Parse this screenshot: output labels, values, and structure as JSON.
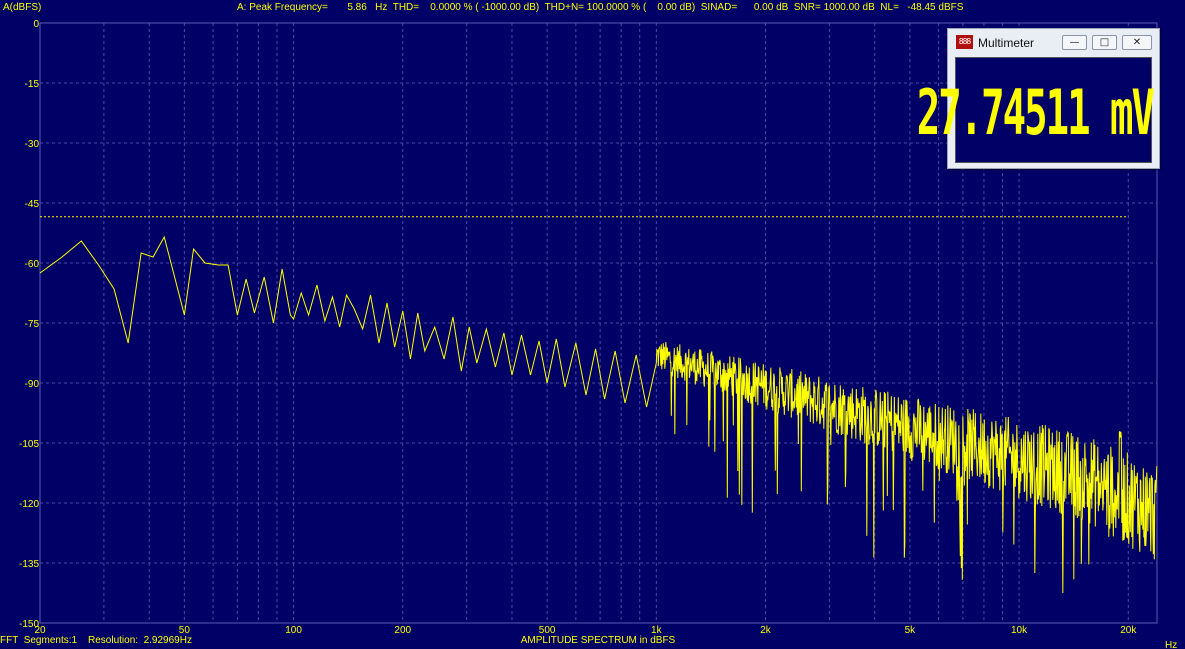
{
  "header": {
    "text": "A: Peak Frequency=       5.86   Hz  THD=    0.0000 % ( -1000.00 dB)  THD+N= 100.0000 % (    0.00 dB)  SINAD=      0.00 dB  SNR= 1000.00 dB  NL=   -48.45 dBFS"
  },
  "footer": {
    "segments": "FFT  Segments:1",
    "resolution": "Resolution:  2.92969Hz"
  },
  "colors": {
    "background": "#000066",
    "trace": "#ffff00",
    "grid": "#4a4aa8"
  },
  "multimeter": {
    "title": "Multimeter",
    "icon": "888",
    "value": "27.74511 mV",
    "buttons": {
      "minimize": "minimize-icon",
      "maximize": "maximize-icon",
      "close": "close-icon"
    }
  },
  "chart_data": {
    "type": "line",
    "title": "AMPLITUDE SPECTRUM in dBFS",
    "xlabel": "Hz",
    "ylabel": "A(dBFS)",
    "xscale": "log",
    "xlim": [
      20,
      24000
    ],
    "ylim": [
      -150,
      0
    ],
    "grid": true,
    "yticks": [
      0,
      -15,
      -30,
      -45,
      -60,
      -75,
      -90,
      -105,
      -120,
      -135,
      -150
    ],
    "xticks": [
      {
        "value": 20,
        "label": "20"
      },
      {
        "value": 50,
        "label": "50"
      },
      {
        "value": 100,
        "label": "100"
      },
      {
        "value": 200,
        "label": "200"
      },
      {
        "value": 500,
        "label": "500"
      },
      {
        "value": 1000,
        "label": "1k"
      },
      {
        "value": 2000,
        "label": "2k"
      },
      {
        "value": 5000,
        "label": "5k"
      },
      {
        "value": 10000,
        "label": "10k"
      },
      {
        "value": 20000,
        "label": "20k"
      }
    ],
    "reference_line": {
      "y": -48.45,
      "x_from": 20,
      "x_to": 20000,
      "style": "dotted"
    },
    "series": [
      {
        "x": [
          20,
          23,
          26,
          29,
          32,
          35,
          38,
          41,
          44,
          47,
          50,
          53,
          57,
          62,
          66,
          70,
          74,
          78,
          83,
          88,
          93,
          98,
          100,
          105,
          110,
          116,
          122,
          128,
          134,
          140,
          147,
          155,
          163,
          172,
          181,
          190,
          200,
          210,
          220,
          230,
          245,
          260,
          275,
          290,
          305,
          320,
          340,
          360,
          380,
          400,
          425,
          450,
          475,
          500,
          530,
          560,
          600,
          640,
          680,
          720,
          770,
          820,
          880,
          940,
          1000
        ],
        "y": [
          -62.5,
          -58.5,
          -54.5,
          -60.5,
          -66.5,
          -80,
          -57.5,
          -58.5,
          -53.5,
          -63.5,
          -73,
          -56.5,
          -60,
          -60.5,
          -60.5,
          -73,
          -64,
          -72.5,
          -63.5,
          -75,
          -61.5,
          -73,
          -74,
          -67.5,
          -73,
          -65.5,
          -74.5,
          -68.5,
          -76,
          -68,
          -71.5,
          -76.5,
          -68,
          -80,
          -70,
          -81,
          -72,
          -84,
          -72.5,
          -82,
          -76,
          -84,
          -73.5,
          -87,
          -76,
          -85,
          -76.5,
          -86,
          -77.5,
          -88,
          -78,
          -88,
          -79.5,
          -90,
          -79,
          -91,
          -80,
          -93,
          -81.5,
          -94,
          -82,
          -95,
          -83,
          -96,
          -85
        ]
      }
    ]
  }
}
